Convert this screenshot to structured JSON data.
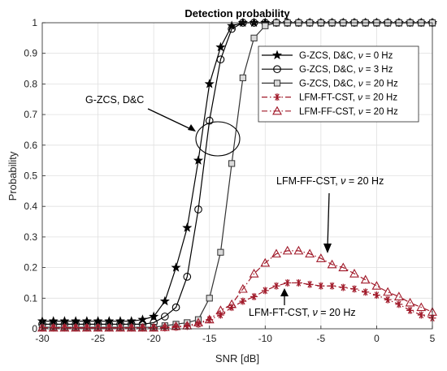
{
  "chart_data": {
    "type": "line",
    "title": "Detection probability",
    "xlabel": "SNR [dB]",
    "ylabel": "Probability",
    "xlim": [
      -30,
      5
    ],
    "ylim": [
      0,
      1
    ],
    "xticks": [
      -30,
      -25,
      -20,
      -15,
      -10,
      -5,
      0,
      5
    ],
    "yticks": [
      0,
      0.1,
      0.2,
      0.3,
      0.4,
      0.5,
      0.6,
      0.7,
      0.8,
      0.9,
      1
    ],
    "grid": true,
    "legend_position": "top-right",
    "x": [
      -30,
      -29,
      -28,
      -27,
      -26,
      -25,
      -24,
      -23,
      -22,
      -21,
      -20,
      -19,
      -18,
      -17,
      -16,
      -15,
      -14,
      -13,
      -12,
      -11,
      -10,
      -9,
      -8,
      -7,
      -6,
      -5,
      -4,
      -3,
      -2,
      -1,
      0,
      1,
      2,
      3,
      4,
      5
    ],
    "series": [
      {
        "name": "G-ZCS, D&C, ν = 0 Hz",
        "legend_prefix": "G-ZCS, D&C, ",
        "color": "#000000",
        "marker": "star",
        "line": "solid",
        "values": [
          0.025,
          0.025,
          0.025,
          0.025,
          0.025,
          0.025,
          0.025,
          0.025,
          0.025,
          0.03,
          0.04,
          0.09,
          0.2,
          0.33,
          0.55,
          0.8,
          0.92,
          0.99,
          1,
          1,
          1,
          1,
          1,
          1,
          1,
          1,
          1,
          1,
          1,
          1,
          1,
          1,
          1,
          1,
          1,
          1
        ]
      },
      {
        "name": "G-ZCS, D&C, ν = 3 Hz",
        "legend_prefix": "G-ZCS, D&C, ",
        "color": "#000000",
        "marker": "circle",
        "line": "solid",
        "values": [
          0.015,
          0.015,
          0.015,
          0.015,
          0.015,
          0.015,
          0.015,
          0.015,
          0.015,
          0.015,
          0.02,
          0.04,
          0.07,
          0.17,
          0.39,
          0.68,
          0.88,
          0.98,
          1,
          1,
          1,
          1,
          1,
          1,
          1,
          1,
          1,
          1,
          1,
          1,
          1,
          1,
          1,
          1,
          1,
          1
        ]
      },
      {
        "name": "G-ZCS, D&C, ν = 20 Hz",
        "legend_prefix": "G-ZCS, D&C, ",
        "color": "#333333",
        "marker": "square",
        "line": "solid",
        "values": [
          0.005,
          0.005,
          0.005,
          0.005,
          0.005,
          0.005,
          0.005,
          0.005,
          0.005,
          0.005,
          0.005,
          0.01,
          0.015,
          0.02,
          0.03,
          0.1,
          0.25,
          0.54,
          0.82,
          0.95,
          0.99,
          1,
          1,
          1,
          1,
          1,
          1,
          1,
          1,
          1,
          1,
          1,
          1,
          1,
          1,
          1
        ]
      },
      {
        "name": "LFM-FT-CST, ν = 20 Hz",
        "legend_prefix": "LFM-FT-CST, ",
        "color": "#a01828",
        "marker": "asterisk",
        "line": "dashdot",
        "values": [
          0.003,
          0.003,
          0.003,
          0.003,
          0.003,
          0.003,
          0.003,
          0.003,
          0.003,
          0.003,
          0.003,
          0.003,
          0.005,
          0.008,
          0.015,
          0.03,
          0.045,
          0.07,
          0.09,
          0.105,
          0.125,
          0.14,
          0.15,
          0.15,
          0.145,
          0.14,
          0.14,
          0.135,
          0.13,
          0.12,
          0.11,
          0.095,
          0.08,
          0.06,
          0.045,
          0.035
        ]
      },
      {
        "name": "LFM-FF-CST, ν = 20 Hz",
        "legend_prefix": "LFM-FF-CST, ",
        "color": "#a01828",
        "marker": "triangle",
        "line": "dashdot",
        "values": [
          0.003,
          0.003,
          0.003,
          0.003,
          0.003,
          0.003,
          0.003,
          0.003,
          0.003,
          0.003,
          0.003,
          0.005,
          0.008,
          0.01,
          0.02,
          0.03,
          0.06,
          0.08,
          0.13,
          0.18,
          0.215,
          0.245,
          0.255,
          0.255,
          0.245,
          0.23,
          0.21,
          0.2,
          0.18,
          0.16,
          0.14,
          0.12,
          0.105,
          0.085,
          0.07,
          0.055
        ]
      }
    ],
    "legend_suffix": " = 20 Hz",
    "annotations": {
      "gzcs": "G-ZCS, D&C",
      "ff_prefix": "LFM-FF-CST, ",
      "ff_suffix": " = 20 Hz",
      "ft_prefix": "LFM-FT-CST, ",
      "ft_suffix": " = 20 Hz",
      "nu": "ν"
    }
  }
}
